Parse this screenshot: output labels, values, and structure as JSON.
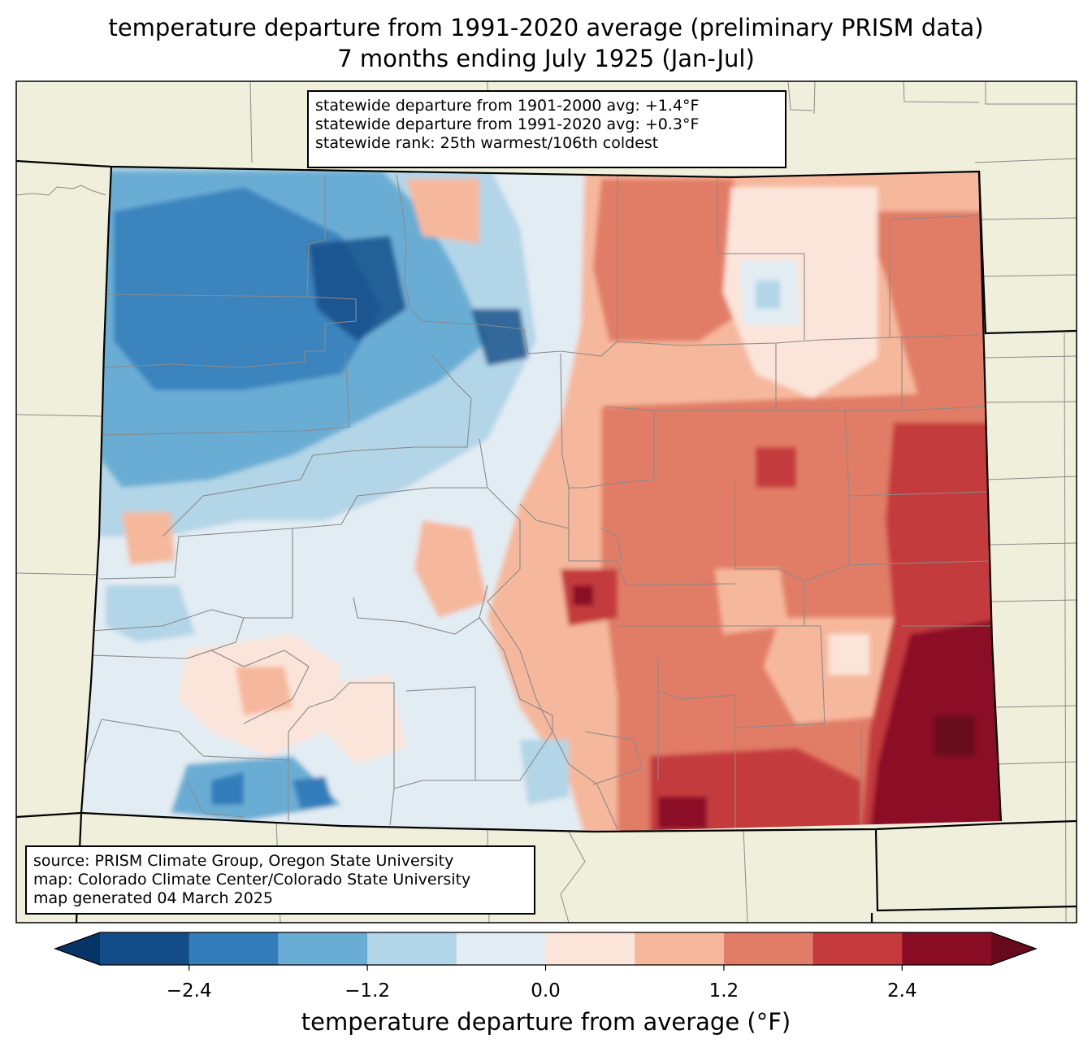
{
  "title": {
    "line1": "temperature departure from 1991-2020 average (preliminary PRISM data)",
    "line2": "7 months ending July 1925 (Jan-Jul)"
  },
  "stats": {
    "line1": "statewide departure from 1901-2000 avg: +1.4°F",
    "line2": "statewide departure from 1991-2020 avg: +0.3°F",
    "line3": "statewide rank: 25th warmest/106th coldest"
  },
  "credits": {
    "line1": "source: PRISM Climate Group, Oregon State University",
    "line2": "map: Colorado Climate Center/Colorado State University",
    "line3": "map generated 04 March 2025"
  },
  "colorbar": {
    "label": "temperature departure from average (°F)",
    "ticks": [
      "−2.4",
      "−1.2",
      "0.0",
      "1.2",
      "2.4"
    ],
    "bins": [
      {
        "min": -3.0,
        "max": -2.4,
        "color": "#134c87"
      },
      {
        "min": -2.4,
        "max": -1.8,
        "color": "#327dba"
      },
      {
        "min": -1.8,
        "max": -1.2,
        "color": "#6aadd4"
      },
      {
        "min": -1.2,
        "max": -0.6,
        "color": "#b2d5e7"
      },
      {
        "min": -0.6,
        "max": 0.0,
        "color": "#e2ecf3"
      },
      {
        "min": 0.0,
        "max": 0.6,
        "color": "#fbe4d9"
      },
      {
        "min": 0.6,
        "max": 1.2,
        "color": "#f6b89c"
      },
      {
        "min": 1.2,
        "max": 1.8,
        "color": "#e17d66"
      },
      {
        "min": 1.8,
        "max": 2.4,
        "color": "#c43a3e"
      },
      {
        "min": 2.4,
        "max": 3.0,
        "color": "#8b0d25"
      }
    ],
    "under_color": "#073466",
    "over_color": "#670a1e"
  },
  "colors": {
    "land_background": "#efefdb",
    "state_border": "#000000",
    "county_lines": "#8a8a8a"
  }
}
